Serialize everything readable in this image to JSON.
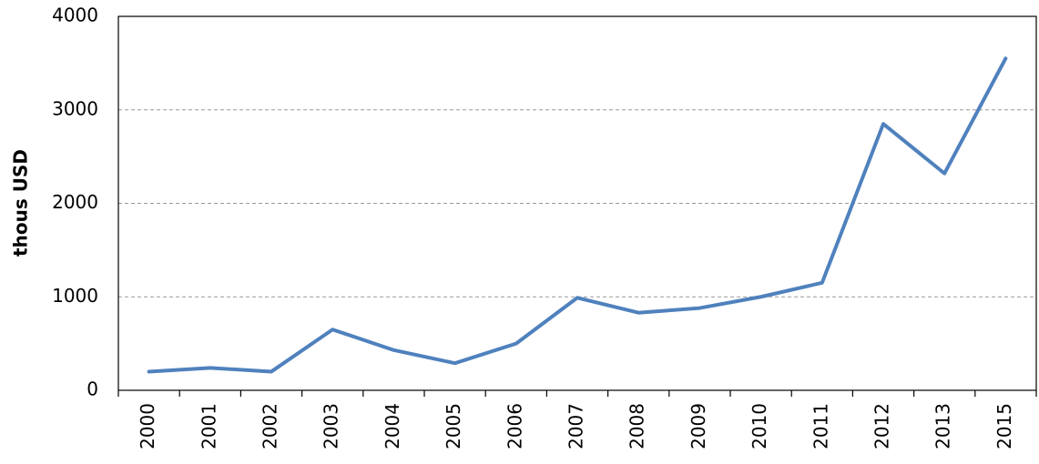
{
  "chart_data": {
    "type": "line",
    "y_label": "thous USD",
    "categories": [
      "2000",
      "2001",
      "2002",
      "2003",
      "2004",
      "2005",
      "2006",
      "2007",
      "2008",
      "2009",
      "2010",
      "2011",
      "2012",
      "2013",
      "2015"
    ],
    "values": [
      200,
      240,
      200,
      650,
      430,
      290,
      500,
      990,
      830,
      880,
      1000,
      1150,
      2850,
      2320,
      3550
    ],
    "color": "#4f81bd",
    "ylim": [
      0,
      4000
    ],
    "yticks": [
      0,
      1000,
      2000,
      3000,
      4000
    ],
    "grid": true
  }
}
